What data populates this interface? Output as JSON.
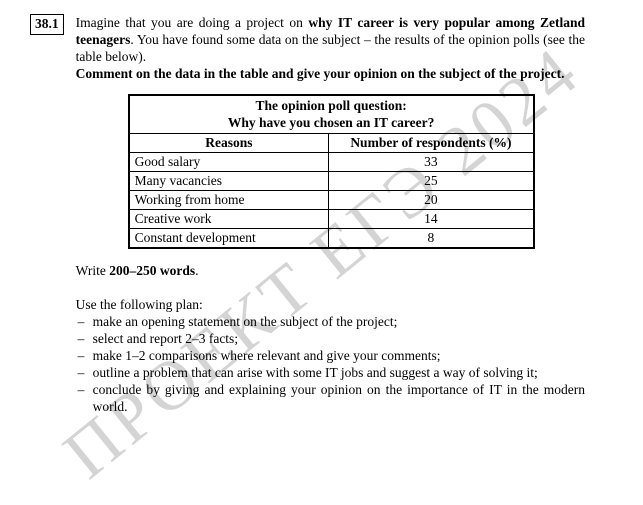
{
  "page": {
    "watermark": "ПРОЕКТ ЕГЭ 2024",
    "task_number": "38.1",
    "intro": {
      "pre": "Imagine that you are doing a project on ",
      "bold": "why IT career is very popular among Zetland teenagers",
      "post": ". You have found some data on the subject – the results of the opinion polls (see the table below)."
    },
    "instruction_bold": "Comment on the data in the table and give your opinion on the subject of the project.",
    "table": {
      "title_line1": "The opinion poll question:",
      "title_line2": "Why have you chosen an IT career?",
      "col_headers": [
        "Reasons",
        "Number of respondents (%)"
      ],
      "rows": [
        {
          "reason": "Good salary",
          "value": "33"
        },
        {
          "reason": "Many vacancies",
          "value": "25"
        },
        {
          "reason": "Working from home",
          "value": "20"
        },
        {
          "reason": "Creative work",
          "value": "14"
        },
        {
          "reason": "Constant development",
          "value": "8"
        }
      ]
    },
    "write_line": {
      "pre": "Write ",
      "bold": "200–250 words",
      "post": "."
    },
    "plan_heading": "Use the following plan:",
    "dash": "–",
    "plan_items": [
      "make an opening statement on the subject of the project;",
      "select and report 2–3 facts;",
      "make 1–2 comparisons where relevant and give your comments;",
      "outline a problem that can arise with some IT jobs and suggest a way of solving it;",
      "conclude by giving and explaining your opinion on the importance of IT in the modern world."
    ]
  }
}
